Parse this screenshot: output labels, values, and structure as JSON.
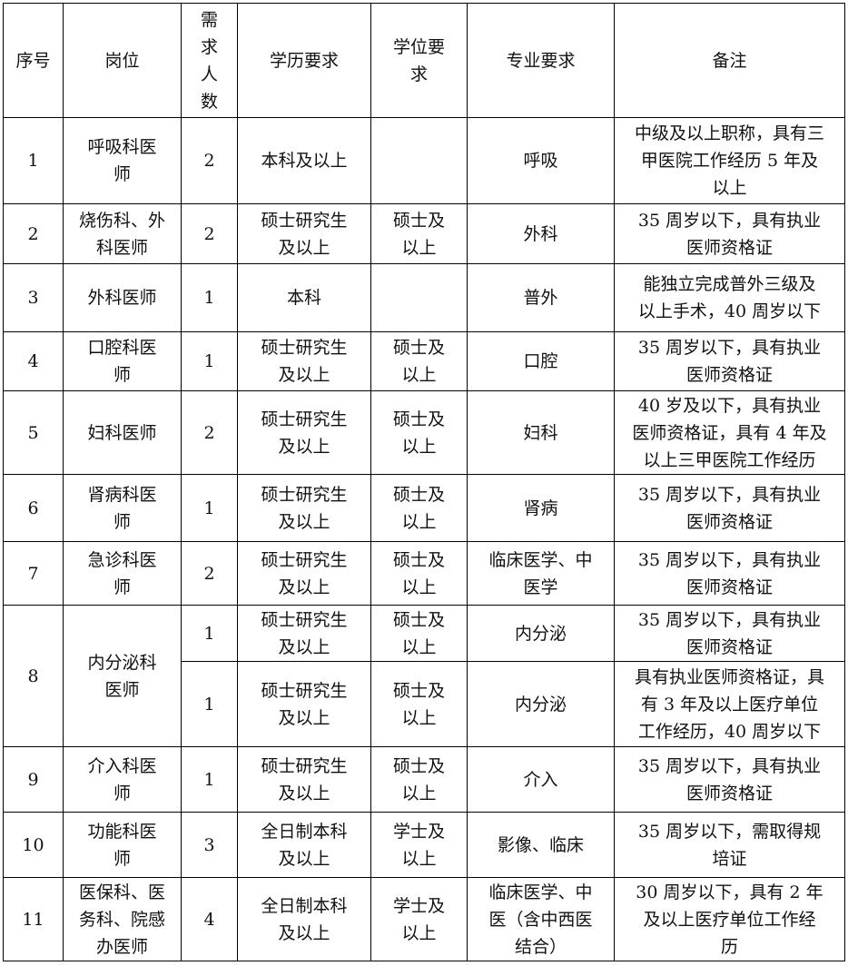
{
  "header": [
    "序号",
    "岗位",
    "需\n求\n人\n数",
    "学历要求",
    "学位要\n求",
    "专业要求",
    "备注"
  ],
  "rows": [
    [
      "1",
      "呼吸科医\n师",
      "2",
      "本科及以上",
      "",
      "呼吸",
      "中级及以上职称，具有三\n甲医院工作经历 5 年及\n以上"
    ],
    [
      "2",
      "烧伤科、外\n科医师",
      "2",
      "硕士研究生\n及以上",
      "硕士及\n以上",
      "外科",
      "35 周岁以下，具有执业\n医师资格证"
    ],
    [
      "3",
      "外科医师",
      "1",
      "本科",
      "",
      "普外",
      "能独立完成普外三级及\n以上手术，40 周岁以下"
    ],
    [
      "4",
      "口腔科医\n师",
      "1",
      "硕士研究生\n及以上",
      "硕士及\n以上",
      "口腔",
      "35 周岁以下，具有执业\n医师资格证"
    ],
    [
      "5",
      "妇科医师",
      "2",
      "硕士研究生\n及以上",
      "硕士及\n以上",
      "妇科",
      "40 岁及以下，具有执业\n医师资格证，具有 4 年及\n以上三甲医院工作经历"
    ],
    [
      "6",
      "肾病科医\n师",
      "1",
      "硕士研究生\n及以上",
      "硕士及\n以上",
      "肾病",
      "35 周岁以下，具有执业\n医师资格证"
    ],
    [
      "7",
      "急诊科医\n师",
      "2",
      "硕士研究生\n及以上",
      "硕士及\n以上",
      "临床医学、中\n医学",
      "35 周岁以下，具有执业\n医师资格证"
    ],
    [
      "8",
      "内分泌科\n医师",
      "1",
      "硕士研究生\n及以上",
      "硕士及\n以上",
      "内分泌",
      "35 周岁以下，具有执业\n医师资格证"
    ],
    [
      "",
      "",
      "1",
      "硕士研究生\n及以上",
      "硕士及\n以上",
      "内分泌",
      "具有执业医师资格证，具\n有 3 年及以上医疗单位\n工作经历，40 周岁以下"
    ],
    [
      "9",
      "介入科医\n师",
      "1",
      "硕士研究生\n及以上",
      "硕士及\n以上",
      "介入",
      "35 周岁以下，具有执业\n医师资格证"
    ],
    [
      "10",
      "功能科医\n师",
      "3",
      "全日制本科\n及以上",
      "学士及\n以上",
      "影像、临床",
      "35 周岁以下，需取得规\n培证"
    ],
    [
      "11",
      "医保科、医\n务科、院感\n办医师",
      "4",
      "全日制本科\n及以上",
      "学士及\n以上",
      "临床医学、中\n医（含中西医\n结合）",
      "30 周岁以下，具有 2 年\n及以上医疗单位工作经\n历"
    ]
  ]
}
